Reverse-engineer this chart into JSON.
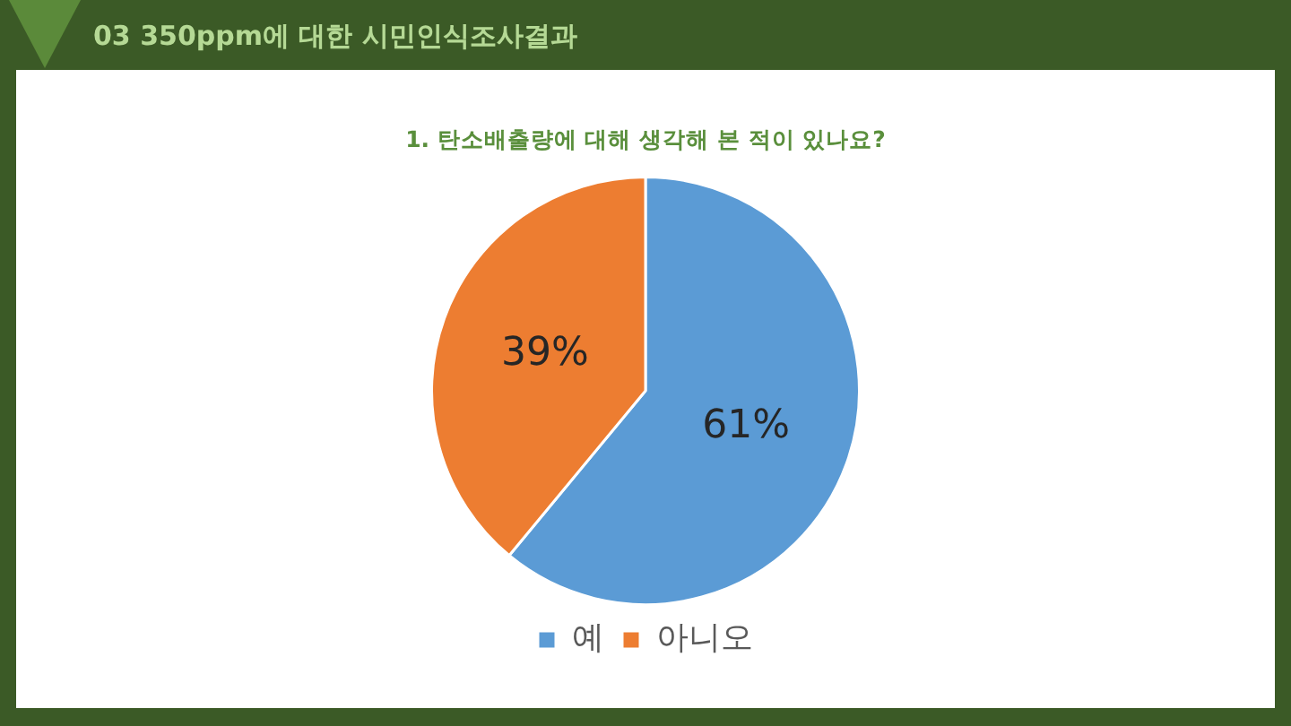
{
  "chart_data": {
    "type": "pie",
    "title": "1. 탄소배출량에 대해 생각해 본 적이 있나요?",
    "categories": [
      "예",
      "아니오"
    ],
    "values": [
      61,
      39
    ],
    "colors": [
      "#5b9bd5",
      "#ed7d31"
    ],
    "value_labels": [
      "61%",
      "39%"
    ],
    "legend": "bottom",
    "annotations": [
      "03 350ppm에 대한 시민인식조사결과"
    ]
  }
}
